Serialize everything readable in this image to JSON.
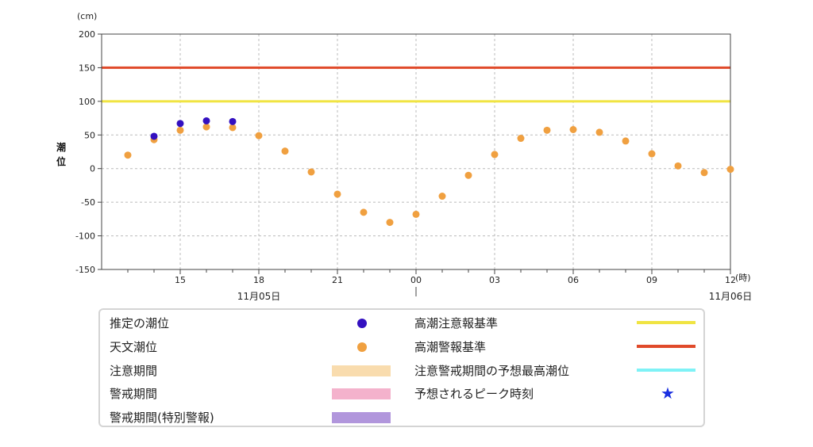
{
  "chart_data": {
    "type": "scatter",
    "y_unit": "(cm)",
    "x_unit": "(時)",
    "ylabel": "潮位",
    "ylim": [
      -150,
      200
    ],
    "yticks": [
      200,
      150,
      100,
      50,
      0,
      -50,
      -100,
      -150
    ],
    "x_hours": [
      "15",
      "18",
      "21",
      "00",
      "03",
      "06",
      "09",
      "12"
    ],
    "x_range_hours": [
      12,
      36
    ],
    "dates": [
      {
        "label": "11月05日",
        "at_hour": 18
      },
      {
        "label": "11月06日",
        "at_hour": 36
      }
    ],
    "midnight_marker_hour": 24,
    "grid": true,
    "thresholds": [
      {
        "name": "高潮注意報基準",
        "value": 100,
        "color": "#f0e442"
      },
      {
        "name": "高潮警報基準",
        "value": 150,
        "color": "#e04a2a"
      }
    ],
    "series": [
      {
        "name": "推定の潮位",
        "color": "#3310c0",
        "points": [
          [
            14,
            48
          ],
          [
            15,
            67
          ],
          [
            16,
            71
          ],
          [
            17,
            70
          ]
        ]
      },
      {
        "name": "天文潮位",
        "color": "#f0a040",
        "points": [
          [
            13,
            20
          ],
          [
            14,
            43
          ],
          [
            15,
            57
          ],
          [
            16,
            62
          ],
          [
            17,
            61
          ],
          [
            18,
            49
          ],
          [
            19,
            26
          ],
          [
            20,
            -5
          ],
          [
            21,
            -38
          ],
          [
            22,
            -65
          ],
          [
            23,
            -80
          ],
          [
            24,
            -68
          ],
          [
            25,
            -41
          ],
          [
            26,
            -10
          ],
          [
            27,
            21
          ],
          [
            28,
            45
          ],
          [
            29,
            57
          ],
          [
            30,
            58
          ],
          [
            31,
            54
          ],
          [
            32,
            41
          ],
          [
            33,
            22
          ],
          [
            34,
            4
          ],
          [
            35,
            -6
          ],
          [
            36,
            -1
          ]
        ]
      }
    ]
  },
  "legend": {
    "estimated_tide": {
      "label": "推定の潮位",
      "color": "#3310c0"
    },
    "astronomical_tide": {
      "label": "天文潮位",
      "color": "#f0a040"
    },
    "caution_period": {
      "label": "注意期間",
      "color": "#f9dcae"
    },
    "warning_period": {
      "label": "警戒期間",
      "color": "#f4b2cc"
    },
    "special_warning_period": {
      "label": "警戒期間(特別警報)",
      "color": "#b196dc"
    },
    "storm_surge_advisory": {
      "label": "高潮注意報基準",
      "color": "#f0e442"
    },
    "storm_surge_warning": {
      "label": "高潮警報基準",
      "color": "#e04a2a"
    },
    "forecast_peak_level": {
      "label": "注意警戒期間の予想最高潮位",
      "color": "#7ff2f6"
    },
    "forecast_peak_time": {
      "label": "予想されるピーク時刻",
      "color": "#1a2fe0",
      "icon": "star-icon"
    }
  }
}
